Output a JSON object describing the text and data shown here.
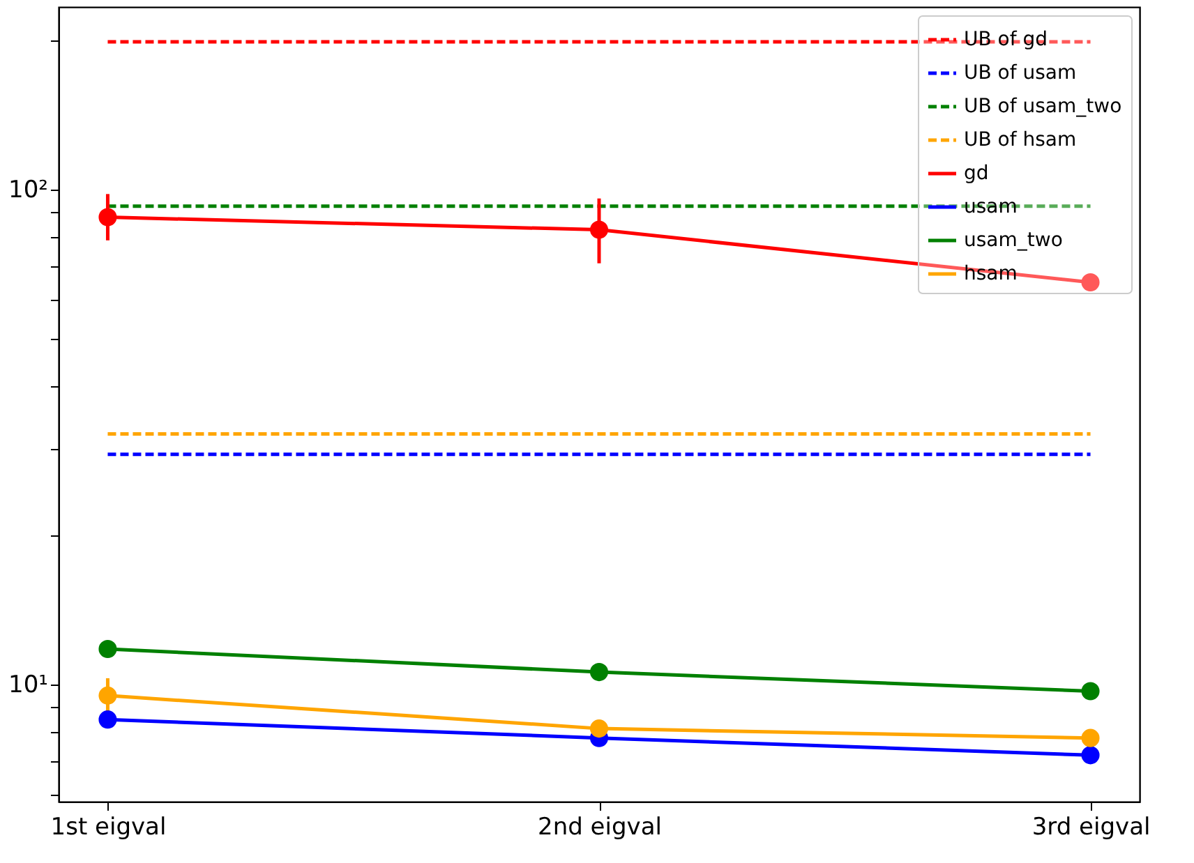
{
  "chart_data": {
    "type": "line",
    "categories": [
      "1st eigval",
      "2nd eigval",
      "3rd eigval"
    ],
    "log": "y",
    "grid": false,
    "legend": "top right",
    "ylim": [
      5.8,
      234
    ],
    "yticks": [
      {
        "value": 6,
        "label": null
      },
      {
        "value": 7,
        "label": null
      },
      {
        "value": 8,
        "label": null
      },
      {
        "value": 9,
        "label": null
      },
      {
        "value": 10,
        "label": "10¹"
      },
      {
        "value": 20,
        "label": null
      },
      {
        "value": 30,
        "label": null
      },
      {
        "value": 40,
        "label": null
      },
      {
        "value": 50,
        "label": null
      },
      {
        "value": 60,
        "label": null
      },
      {
        "value": 70,
        "label": null
      },
      {
        "value": 80,
        "label": null
      },
      {
        "value": 90,
        "label": null
      },
      {
        "value": 100,
        "label": "10²"
      },
      {
        "value": 200,
        "label": null
      }
    ],
    "series": [
      {
        "name": "UB of gd",
        "color": "#ff0000",
        "values": [
          199,
          199,
          199
        ],
        "line_style": "dashed",
        "marker": "none"
      },
      {
        "name": "UB of usam",
        "color": "#0000ff",
        "values": [
          29.2,
          29.2,
          29.2
        ],
        "line_style": "dashed",
        "marker": "none"
      },
      {
        "name": "UB of usam_two",
        "color": "#008000",
        "values": [
          92.6,
          92.6,
          92.6
        ],
        "line_style": "dashed",
        "marker": "none"
      },
      {
        "name": "UB of hsam",
        "color": "#ffa500",
        "values": [
          32.1,
          32.1,
          32.1
        ],
        "line_style": "dashed",
        "marker": "none"
      },
      {
        "name": "gd",
        "color": "#ff0000",
        "values": [
          88,
          83,
          65
        ],
        "errors": [
          [
            79,
            98
          ],
          [
            71,
            96
          ],
          null
        ],
        "line_style": "solid",
        "marker": "circle"
      },
      {
        "name": "usam",
        "color": "#0000ff",
        "values": [
          8.5,
          7.8,
          7.2
        ],
        "line_style": "solid",
        "marker": "circle"
      },
      {
        "name": "usam_two",
        "color": "#008000",
        "values": [
          11.8,
          10.6,
          9.7
        ],
        "line_style": "solid",
        "marker": "circle"
      },
      {
        "name": "hsam",
        "color": "#ffa500",
        "values": [
          9.5,
          8.15,
          7.8
        ],
        "errors": [
          [
            8.8,
            10.3
          ],
          null,
          null
        ],
        "line_style": "solid",
        "marker": "circle"
      }
    ]
  }
}
